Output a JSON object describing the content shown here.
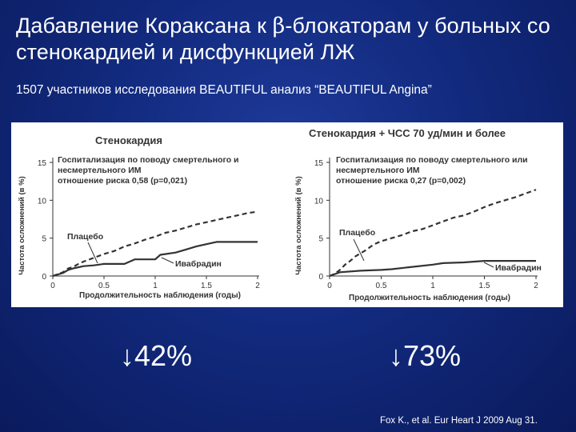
{
  "slide": {
    "title_part1": "Дабавление Кораксана к ",
    "title_beta": "β",
    "title_part2": "-блокаторам у больных со стенокардией и дисфункцией ЛЖ",
    "subtitle": "1507 участников исследования BEAUTIFUL анализ “BEAUTIFUL Angina”",
    "reduction_left": "↓42%",
    "reduction_right": "↓73%",
    "citation": "Fox K., et al.  Eur Heart J 2009 Aug 31."
  },
  "colors": {
    "background": "#122a7e",
    "text": "#ffffff",
    "figure_bg": "#ffffff",
    "ink": "#333333"
  },
  "chart_data": [
    {
      "type": "line",
      "title": "Стенокардия",
      "annotation": [
        "Госпитализация по поводу смертельного и",
        "несмертельного ИМ",
        "отношение риска 0,58 (p=0,021)"
      ],
      "xlabel": "Продолжительность наблюдения (годы)",
      "ylabel": "Частота осложнений (в %)",
      "xlim": [
        0,
        2
      ],
      "ylim": [
        0,
        15
      ],
      "xticks": [
        "0",
        "0.5",
        "1",
        "1.5",
        "2"
      ],
      "yticks": [
        "0",
        "5",
        "10",
        "15"
      ],
      "series": [
        {
          "name": "Плацебо",
          "style": "dashed",
          "x": [
            0,
            0.1,
            0.15,
            0.2,
            0.25,
            0.3,
            0.4,
            0.5,
            0.6,
            0.7,
            0.8,
            0.9,
            1.0,
            1.1,
            1.2,
            1.3,
            1.4,
            1.5,
            1.6,
            1.7,
            1.8,
            1.9,
            2.0
          ],
          "y": [
            0,
            0.5,
            1.0,
            1.2,
            1.6,
            1.9,
            2.4,
            2.9,
            3.3,
            3.9,
            4.3,
            4.8,
            5.2,
            5.7,
            6.0,
            6.4,
            6.8,
            7.1,
            7.4,
            7.7,
            8.0,
            8.3,
            8.5
          ]
        },
        {
          "name": "Ивабрадин",
          "style": "solid",
          "x": [
            0,
            0.1,
            0.15,
            0.2,
            0.3,
            0.4,
            0.5,
            0.7,
            0.8,
            1.0,
            1.05,
            1.2,
            1.3,
            1.4,
            1.5,
            1.6,
            2.0
          ],
          "y": [
            0,
            0.4,
            0.8,
            1.0,
            1.3,
            1.4,
            1.6,
            1.6,
            2.2,
            2.2,
            2.8,
            3.1,
            3.5,
            3.9,
            4.2,
            4.5,
            4.5
          ]
        }
      ]
    },
    {
      "type": "line",
      "title": "Стенокардия + ЧСС 70 уд/мин и более",
      "annotation": [
        "Госпитализация по поводу смертельного или",
        "несмертельного ИМ",
        "отношение риска 0,27 (p=0,002)"
      ],
      "xlabel": "Продолжительность наблюдения (годы)",
      "ylabel": "Частота осложнений (в %)",
      "xlim": [
        0,
        2
      ],
      "ylim": [
        0,
        15
      ],
      "xticks": [
        "0",
        "0.5",
        "1",
        "1.5",
        "2"
      ],
      "yticks": [
        "0",
        "5",
        "10",
        "15"
      ],
      "series": [
        {
          "name": "Плацебо",
          "style": "dashed",
          "x": [
            0,
            0.05,
            0.1,
            0.15,
            0.2,
            0.25,
            0.3,
            0.35,
            0.4,
            0.45,
            0.5,
            0.6,
            0.7,
            0.8,
            0.9,
            1.0,
            1.1,
            1.2,
            1.3,
            1.4,
            1.5,
            1.6,
            1.7,
            1.8,
            1.9,
            2.0
          ],
          "y": [
            0,
            0.3,
            0.8,
            1.5,
            2.0,
            2.6,
            3.0,
            3.4,
            3.9,
            4.3,
            4.6,
            5.0,
            5.4,
            5.9,
            6.2,
            6.7,
            7.2,
            7.7,
            8.0,
            8.5,
            9.1,
            9.6,
            10.0,
            10.4,
            10.9,
            11.4
          ]
        },
        {
          "name": "Ивабрадин",
          "style": "solid",
          "x": [
            0,
            0.1,
            0.3,
            0.5,
            0.6,
            0.8,
            1.0,
            1.1,
            1.3,
            1.5,
            2.0
          ],
          "y": [
            0,
            0.5,
            0.7,
            0.8,
            0.9,
            1.2,
            1.5,
            1.7,
            1.8,
            2.0,
            2.0
          ]
        }
      ]
    }
  ]
}
